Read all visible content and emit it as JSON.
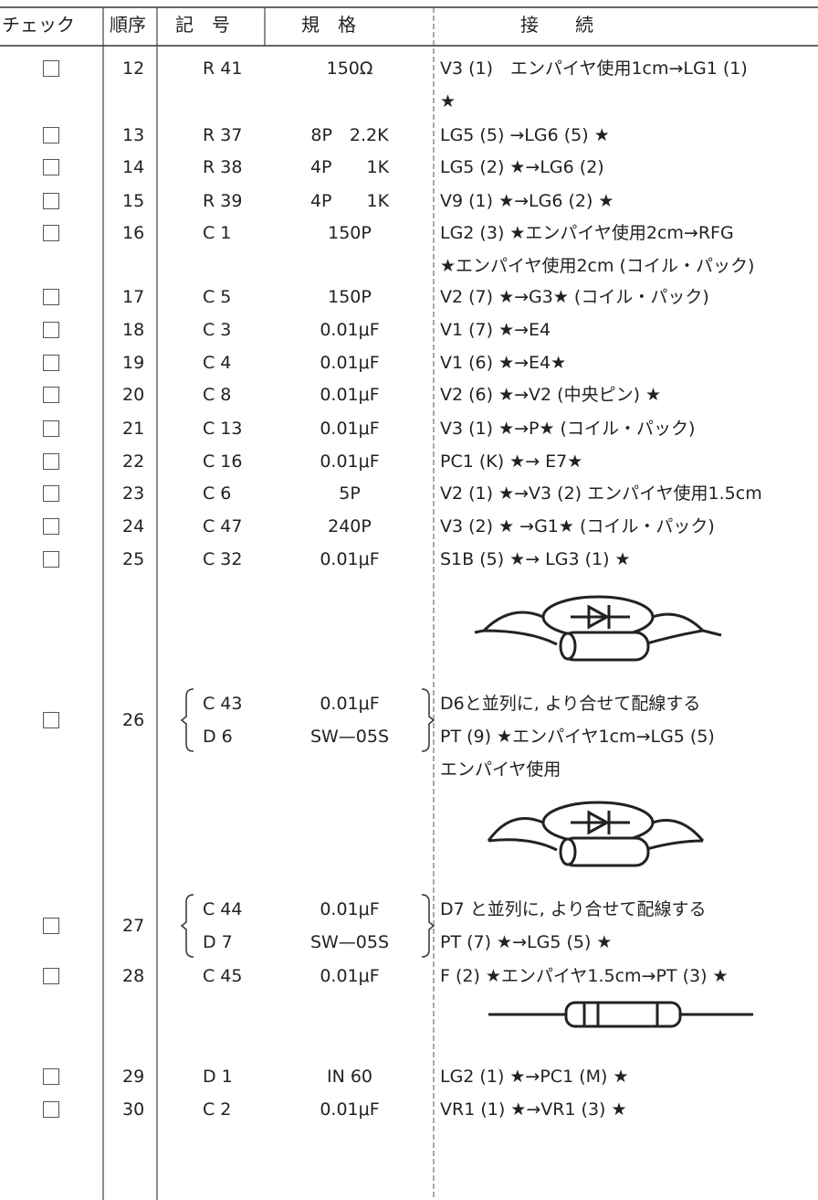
{
  "header": [
    "チェック",
    "順序",
    "記　号",
    "規　格",
    "接　　続"
  ],
  "rows": [
    {
      "order": "12",
      "parts": [
        {
          "symbol": "R 41",
          "spec": "150Ω"
        }
      ],
      "connection": [
        "V3 (1)　エンパイヤ使用1cm→LG1 (1)",
        "★"
      ]
    },
    {
      "order": "13",
      "parts": [
        {
          "symbol": "R 37",
          "spec": "8P　2.2K"
        }
      ],
      "connection": [
        "LG5 (5) →LG6 (5) ★"
      ]
    },
    {
      "order": "14",
      "parts": [
        {
          "symbol": "R 38",
          "spec": "4P　　1K"
        }
      ],
      "connection": [
        "LG5 (2) ★→LG6 (2)"
      ]
    },
    {
      "order": "15",
      "parts": [
        {
          "symbol": "R 39",
          "spec": "4P　　1K"
        }
      ],
      "connection": [
        "V9 (1) ★→LG6 (2) ★"
      ]
    },
    {
      "order": "16",
      "parts": [
        {
          "symbol": "C 1",
          "spec": "150P"
        }
      ],
      "connection": [
        "LG2 (3) ★エンパイヤ使用2cm→RFG",
        "★エンパイヤ使用2cm (コイル・パック)"
      ]
    },
    {
      "order": "17",
      "parts": [
        {
          "symbol": "C 5",
          "spec": "150P"
        }
      ],
      "connection": [
        "V2 (7) ★→G3★ (コイル・パック)"
      ]
    },
    {
      "order": "18",
      "parts": [
        {
          "symbol": "C 3",
          "spec": "0.01μF"
        }
      ],
      "connection": [
        "V1 (7) ★→E4"
      ]
    },
    {
      "order": "19",
      "parts": [
        {
          "symbol": "C 4",
          "spec": "0.01μF"
        }
      ],
      "connection": [
        "V1 (6) ★→E4★"
      ]
    },
    {
      "order": "20",
      "parts": [
        {
          "symbol": "C 8",
          "spec": "0.01μF"
        }
      ],
      "connection": [
        "V2 (6) ★→V2 (中央ピン) ★"
      ]
    },
    {
      "order": "21",
      "parts": [
        {
          "symbol": "C 13",
          "spec": "0.01μF"
        }
      ],
      "connection": [
        "V3 (1) ★→P★ (コイル・パック)"
      ]
    },
    {
      "order": "22",
      "parts": [
        {
          "symbol": "C 16",
          "spec": "0.01μF"
        }
      ],
      "connection": [
        "PC1 (K) ★→ E7★"
      ]
    },
    {
      "order": "23",
      "parts": [
        {
          "symbol": "C 6",
          "spec": "5P"
        }
      ],
      "connection": [
        "V2 (1) ★→V3 (2) エンパイヤ使用1.5cm"
      ]
    },
    {
      "order": "24",
      "parts": [
        {
          "symbol": "C 47",
          "spec": "240P"
        }
      ],
      "connection": [
        "V3 (2) ★ →G1★ (コイル・パック)"
      ]
    },
    {
      "order": "25",
      "parts": [
        {
          "symbol": "C 32",
          "spec": "0.01μF"
        }
      ],
      "connection": [
        "S1B (5) ★→ LG3 (1) ★"
      ]
    },
    {
      "order": "26",
      "parts": [
        {
          "symbol": "C 43",
          "spec": "0.01μF"
        },
        {
          "symbol": "D 6",
          "spec": "SW—05S"
        }
      ],
      "connection": [
        "D6と並列に, より合せて配線する",
        "PT (9) ★エンパイヤ1cm→LG5 (5)",
        "エンパイヤ使用"
      ]
    },
    {
      "order": "27",
      "parts": [
        {
          "symbol": "C 44",
          "spec": "0.01μF"
        },
        {
          "symbol": "D 7",
          "spec": "SW—05S"
        }
      ],
      "connection": [
        "D7 と並列に, より合せて配線する",
        "PT (7) ★→LG5 (5) ★"
      ]
    },
    {
      "order": "28",
      "parts": [
        {
          "symbol": "C 45",
          "spec": "0.01μF"
        }
      ],
      "connection": [
        "F (2) ★エンパイヤ1.5cm→PT (3) ★"
      ]
    },
    {
      "order": "29",
      "parts": [
        {
          "symbol": "D 1",
          "spec": "IN 60"
        }
      ],
      "connection": [
        "LG2 (1) ★→PC1 (M) ★"
      ]
    },
    {
      "order": "30",
      "parts": [
        {
          "symbol": "C 2",
          "spec": "0.01μF"
        }
      ],
      "connection": [
        "VR1 (1) ★→VR1 (3) ★"
      ]
    }
  ]
}
